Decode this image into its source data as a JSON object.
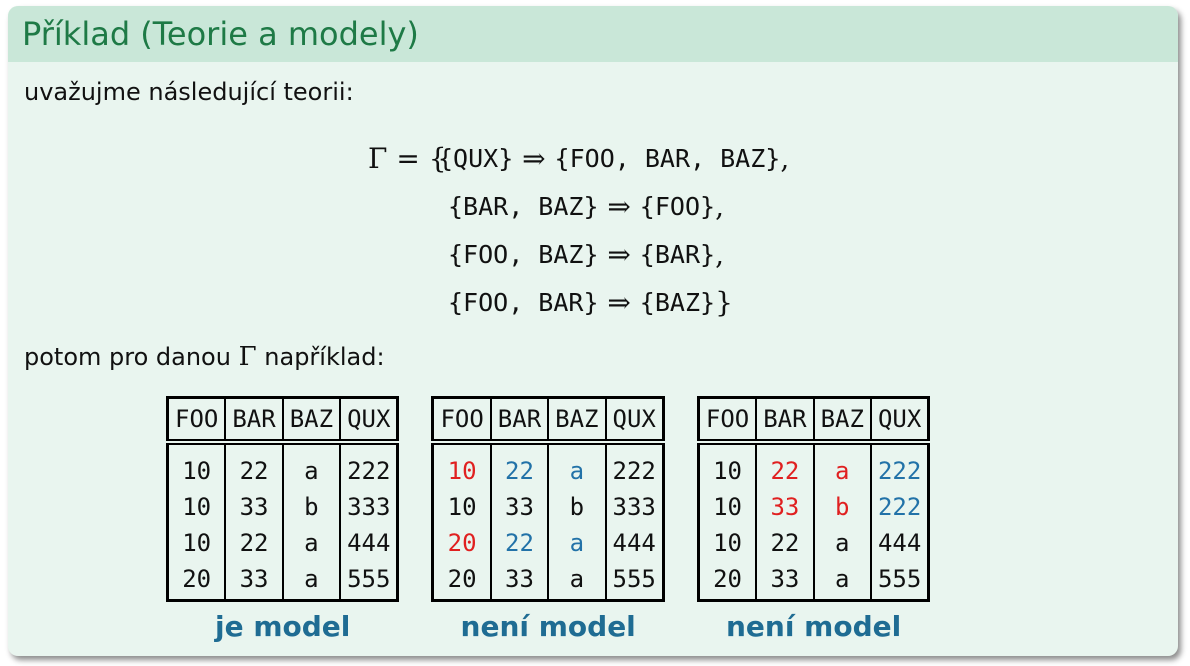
{
  "title": "Příklad (Teorie a modely)",
  "intro": "uvažujme následující teorii:",
  "formula": {
    "lhs": "Γ = {",
    "rules": [
      {
        "lhs": "{QUX}",
        "arrow": "⇒",
        "rhs": "{FOO, BAR, BAZ}",
        "sep": ","
      },
      {
        "lhs": "{BAR, BAZ}",
        "arrow": "⇒",
        "rhs": "{FOO}",
        "sep": ","
      },
      {
        "lhs": "{FOO, BAZ}",
        "arrow": "⇒",
        "rhs": "{BAR}",
        "sep": ","
      },
      {
        "lhs": "{FOO, BAR}",
        "arrow": "⇒",
        "rhs": "{BAZ}",
        "sep": "}"
      }
    ]
  },
  "after": {
    "before": "potom pro danou ",
    "gamma": "Γ",
    "after": " například:"
  },
  "colors": {
    "red": "#e02020",
    "blue": "#2272a8",
    "caption": "#1f6c93"
  },
  "tables": [
    {
      "caption": "je model",
      "headers": [
        "FOO",
        "BAR",
        "BAZ",
        "QUX"
      ],
      "rows": [
        [
          "10",
          "22",
          "a",
          "222"
        ],
        [
          "10",
          "33",
          "b",
          "333"
        ],
        [
          "10",
          "22",
          "a",
          "444"
        ],
        [
          "20",
          "33",
          "a",
          "555"
        ]
      ],
      "colors": [
        [
          "",
          "",
          "",
          ""
        ],
        [
          "",
          "",
          "",
          ""
        ],
        [
          "",
          "",
          "",
          ""
        ],
        [
          "",
          "",
          "",
          ""
        ]
      ]
    },
    {
      "caption": "není model",
      "headers": [
        "FOO",
        "BAR",
        "BAZ",
        "QUX"
      ],
      "rows": [
        [
          "10",
          "22",
          "a",
          "222"
        ],
        [
          "10",
          "33",
          "b",
          "333"
        ],
        [
          "20",
          "22",
          "a",
          "444"
        ],
        [
          "20",
          "33",
          "a",
          "555"
        ]
      ],
      "colors": [
        [
          "red",
          "blue",
          "blue",
          ""
        ],
        [
          "",
          "",
          "",
          ""
        ],
        [
          "red",
          "blue",
          "blue",
          ""
        ],
        [
          "",
          "",
          "",
          ""
        ]
      ]
    },
    {
      "caption": "není model",
      "headers": [
        "FOO",
        "BAR",
        "BAZ",
        "QUX"
      ],
      "rows": [
        [
          "10",
          "22",
          "a",
          "222"
        ],
        [
          "10",
          "33",
          "b",
          "222"
        ],
        [
          "10",
          "22",
          "a",
          "444"
        ],
        [
          "20",
          "33",
          "a",
          "555"
        ]
      ],
      "colors": [
        [
          "",
          "red",
          "red",
          "blue"
        ],
        [
          "",
          "red",
          "red",
          "blue"
        ],
        [
          "",
          "",
          "",
          ""
        ],
        [
          "",
          "",
          "",
          ""
        ]
      ]
    }
  ]
}
